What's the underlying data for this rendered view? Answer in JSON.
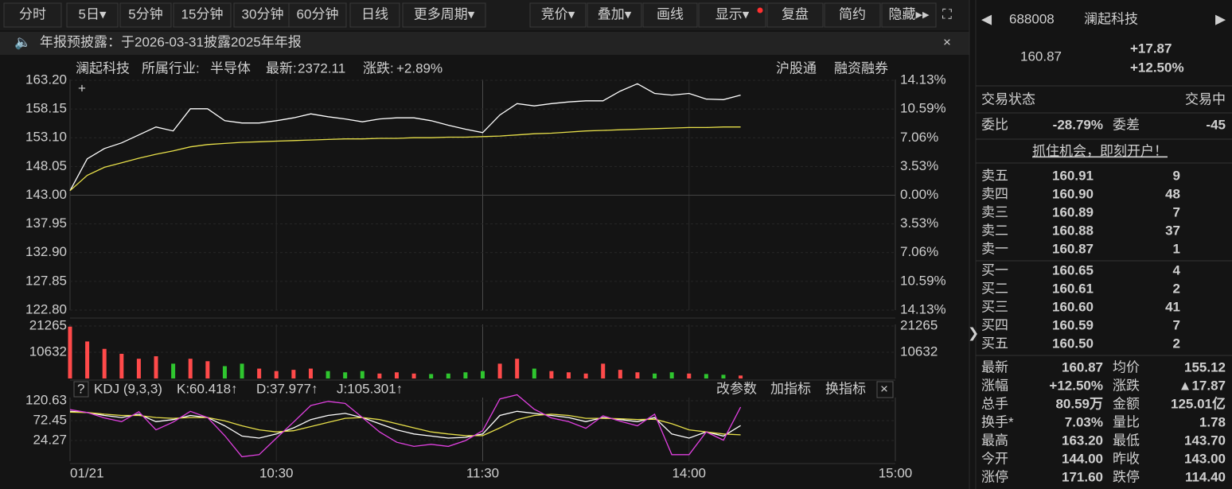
{
  "toolbar": {
    "periods": [
      "分时",
      "5日▾",
      "5分钟",
      "15分钟",
      "30分钟",
      "60分钟",
      "日线",
      "更多周期▾"
    ],
    "tools": [
      "竞价▾",
      "叠加▾",
      "画线",
      "显示▾",
      "复盘",
      "简约",
      "隐藏▸▸"
    ]
  },
  "notice": {
    "text": "年报预披露：于2026-03-31披露2025年年报"
  },
  "info": {
    "name": "澜起科技",
    "industry_label": "所属行业:",
    "industry": "半导体",
    "latest_label": "最新:",
    "latest": "2372.11",
    "change_label": "涨跌:",
    "change": "+2.89%",
    "links": [
      "沪股通",
      "融资融券"
    ]
  },
  "chart_data": [
    {
      "type": "line",
      "x": [
        "09:30",
        "09:35",
        "09:40",
        "09:45",
        "09:50",
        "09:55",
        "10:00",
        "10:05",
        "10:10",
        "10:15",
        "10:20",
        "10:25",
        "10:30",
        "10:35",
        "10:40",
        "10:45",
        "10:50",
        "10:55",
        "11:00",
        "11:05",
        "11:10",
        "11:15",
        "11:20",
        "11:25",
        "11:30",
        "13:05",
        "13:10",
        "13:15",
        "13:20",
        "13:25",
        "13:30",
        "13:35",
        "13:40",
        "13:45",
        "13:50",
        "13:55",
        "14:00",
        "14:05",
        "14:10",
        "14:15"
      ],
      "series": [
        {
          "color": "#ffffff",
          "values": [
            143.8,
            149.4,
            151.2,
            152.2,
            153.6,
            155.0,
            154.3,
            158.2,
            158.2,
            156.1,
            155.7,
            155.7,
            156.1,
            156.6,
            157.3,
            156.8,
            156.4,
            155.9,
            156.4,
            156.6,
            156.6,
            156.1,
            155.3,
            154.6,
            154.0,
            157.1,
            159.1,
            158.7,
            159.1,
            159.4,
            159.6,
            159.6,
            161.3,
            162.6,
            160.9,
            160.6,
            160.9,
            159.9,
            159.8,
            160.6
          ]
        },
        {
          "color": "#e8e04a",
          "values": [
            143.8,
            146.5,
            147.9,
            148.7,
            149.5,
            150.2,
            150.8,
            151.5,
            151.9,
            152.1,
            152.3,
            152.4,
            152.5,
            152.6,
            152.7,
            152.8,
            152.9,
            152.9,
            153.0,
            153.0,
            153.1,
            153.1,
            153.2,
            153.2,
            153.3,
            153.4,
            153.6,
            153.8,
            153.9,
            154.1,
            154.3,
            154.4,
            154.5,
            154.6,
            154.7,
            154.8,
            154.9,
            154.9,
            155.0,
            155.0
          ]
        }
      ],
      "ylim": [
        122.8,
        163.2
      ],
      "yticks": [
        {
          "value": 163.2,
          "label": "163.20"
        },
        {
          "value": 158.15,
          "label": "158.15"
        },
        {
          "value": 153.1,
          "label": "153.10"
        },
        {
          "value": 148.05,
          "label": "148.05"
        },
        {
          "value": 143,
          "label": "143.00"
        },
        {
          "value": 137.95,
          "label": "137.95"
        },
        {
          "value": 132.9,
          "label": "132.90"
        },
        {
          "value": 127.85,
          "label": "127.85"
        },
        {
          "value": 122.8,
          "label": "122.80"
        }
      ],
      "y2lim": [
        -14.13,
        14.13
      ],
      "y2ticks": [
        {
          "value": 14.13,
          "label": "14.13%"
        },
        {
          "value": 10.59,
          "label": "10.59%"
        },
        {
          "value": 7.06,
          "label": "7.06%"
        },
        {
          "value": 3.53,
          "label": "3.53%"
        },
        {
          "value": 0,
          "label": "0.00%"
        },
        {
          "value": -3.53,
          "label": "3.53%"
        },
        {
          "value": -7.06,
          "label": "7.06%"
        },
        {
          "value": -10.59,
          "label": "10.59%"
        },
        {
          "value": -14.13,
          "label": "14.13%"
        }
      ],
      "xticks": [
        {
          "value": "09:30",
          "label": "01/21"
        },
        "10:30",
        "11:30",
        "14:00",
        "15:00"
      ],
      "grid": true
    },
    {
      "type": "bar",
      "values": [
        21000,
        15000,
        12000,
        10000,
        8000,
        9000,
        6000,
        8000,
        7000,
        5000,
        6000,
        4000,
        3000,
        3500,
        4000,
        3000,
        2500,
        3000,
        2000,
        2500,
        2000,
        1800,
        2000,
        2500,
        3000,
        6000,
        8000,
        4000,
        3000,
        2500,
        2000,
        6000,
        3500,
        2500,
        2000,
        2500,
        2000,
        1800,
        1500,
        1200
      ],
      "up_color": "#ff4a4a",
      "down_color": "#2fc62f",
      "ylim": [
        0,
        21265
      ],
      "yticks": [
        21265,
        10632
      ]
    },
    {
      "type": "line",
      "title": "KDJ (9,3,3)",
      "buttons": [
        "改参数",
        "加指标",
        "换指标"
      ],
      "series": [
        {
          "label": "K:60.418↑",
          "color": "#ffffff",
          "values": [
            95,
            92,
            85,
            80,
            88,
            70,
            75,
            85,
            80,
            60,
            35,
            30,
            40,
            55,
            75,
            85,
            90,
            80,
            65,
            50,
            40,
            35,
            30,
            32,
            40,
            85,
            95,
            90,
            85,
            80,
            70,
            80,
            75,
            70,
            80,
            40,
            30,
            45,
            35,
            60.418
          ]
        },
        {
          "label": "D:37.977↑",
          "color": "#e8e04a",
          "values": [
            93,
            92,
            88,
            85,
            85,
            80,
            78,
            80,
            80,
            72,
            60,
            50,
            45,
            48,
            58,
            68,
            78,
            80,
            75,
            65,
            55,
            45,
            40,
            36,
            36,
            55,
            75,
            85,
            88,
            85,
            78,
            78,
            77,
            75,
            76,
            65,
            50,
            45,
            40,
            37.977
          ]
        },
        {
          "label": "J:105.301↑",
          "color": "#e040e0",
          "values": [
            99,
            92,
            79,
            70,
            94,
            50,
            69,
            95,
            80,
            36,
            -15,
            -10,
            30,
            69,
            109,
            119,
            114,
            80,
            45,
            20,
            10,
            15,
            10,
            24,
            48,
            125,
            135,
            100,
            79,
            70,
            54,
            84,
            71,
            60,
            88,
            -10,
            -10,
            45,
            25,
            105.301
          ]
        }
      ],
      "ylim": [
        -25.8,
        128.3
      ],
      "yticks": [
        {
          "value": 120.63,
          "label": "120.63"
        },
        {
          "value": 72.45,
          "label": "72.45"
        },
        {
          "value": 24.27,
          "label": "24.27"
        }
      ]
    }
  ],
  "quote": {
    "code": "688008",
    "name": "澜起科技",
    "price": "160.87",
    "change": "+17.87",
    "pct": "+12.50%",
    "prev_close": 143.0,
    "status_label": "交易状态",
    "status": "交易中",
    "ratio_label": "委比",
    "ratio": "-28.79%",
    "diff_label": "委差",
    "diff": "-45",
    "promo": "抓住机会，即刻开户！",
    "asks": [
      [
        "卖五",
        "160.91",
        "9"
      ],
      [
        "卖四",
        "160.90",
        "48"
      ],
      [
        "卖三",
        "160.89",
        "7"
      ],
      [
        "卖二",
        "160.88",
        "37"
      ],
      [
        "卖一",
        "160.87",
        "1"
      ]
    ],
    "bids": [
      [
        "买一",
        "160.65",
        "4"
      ],
      [
        "买二",
        "160.61",
        "2"
      ],
      [
        "买三",
        "160.60",
        "41"
      ],
      [
        "买四",
        "160.59",
        "7"
      ],
      [
        "买五",
        "160.50",
        "2"
      ]
    ],
    "stats": [
      [
        {
          "label": "最新",
          "value": "160.87",
          "color": "#ff4a4a"
        },
        {
          "label": "均价",
          "value": "155.12",
          "color": "#ff4a4a"
        }
      ],
      [
        {
          "label": "涨幅",
          "value": "+12.50%",
          "color": "#ff4a4a"
        },
        {
          "label": "涨跌",
          "value": "▲17.87",
          "color": "#ff4a4a"
        }
      ],
      [
        {
          "label": "总手",
          "value": "80.59万",
          "color": "#e6e6e6"
        },
        {
          "label": "金额",
          "value": "125.01亿",
          "color": "#3cd6f0"
        }
      ],
      [
        {
          "label": "换手*",
          "value": "7.03%",
          "color": "#e6e6e6"
        },
        {
          "label": "量比",
          "value": "1.78",
          "color": "#e6e6e6"
        }
      ],
      [
        {
          "label": "最高",
          "value": "163.20",
          "color": "#ff4a4a"
        },
        {
          "label": "最低",
          "value": "143.70",
          "color": "#ff4a4a"
        }
      ],
      [
        {
          "label": "今开",
          "value": "144.00",
          "color": "#ff4a4a"
        },
        {
          "label": "昨收",
          "value": "143.00",
          "color": "#e6e6e6"
        }
      ],
      [
        {
          "label": "涨停",
          "value": "171.60",
          "color": "#ff4a4a"
        },
        {
          "label": "跌停",
          "value": "114.40",
          "color": "#2fc62f"
        }
      ]
    ]
  }
}
